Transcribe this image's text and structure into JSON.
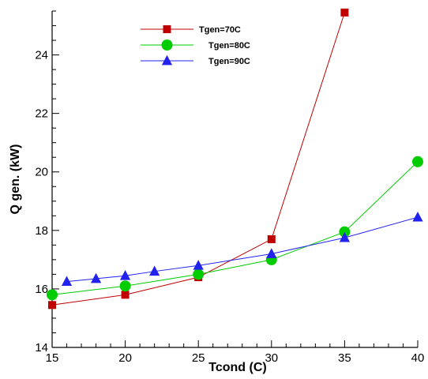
{
  "chart_data": {
    "type": "line",
    "title": "",
    "xlabel": "Tcond (C)",
    "ylabel": "Q gen. (kW)",
    "xlim": [
      15,
      40
    ],
    "ylim": [
      14,
      25.5
    ],
    "xticks": [
      15,
      20,
      25,
      30,
      35,
      40
    ],
    "yticks": [
      14,
      16,
      18,
      20,
      22,
      24
    ],
    "legend": "top-center",
    "grid": false,
    "series": [
      {
        "name": "Tgen=70C",
        "color": "#c00000",
        "marker": "square",
        "x": [
          15,
          20,
          25,
          30,
          35
        ],
        "y": [
          15.45,
          15.8,
          16.4,
          17.7,
          25.45
        ]
      },
      {
        "name": "Tgen=80C",
        "color": "#00cc00",
        "marker": "circle",
        "x": [
          15,
          20,
          25,
          30,
          35,
          40
        ],
        "y": [
          15.8,
          16.1,
          16.5,
          17.0,
          17.95,
          20.35
        ]
      },
      {
        "name": "Tgen=90C",
        "color": "#2222ee",
        "marker": "triangle",
        "x": [
          16,
          18,
          20,
          22,
          25,
          30,
          35,
          40
        ],
        "y": [
          16.25,
          16.35,
          16.45,
          16.6,
          16.8,
          17.2,
          17.75,
          18.45
        ]
      }
    ]
  }
}
